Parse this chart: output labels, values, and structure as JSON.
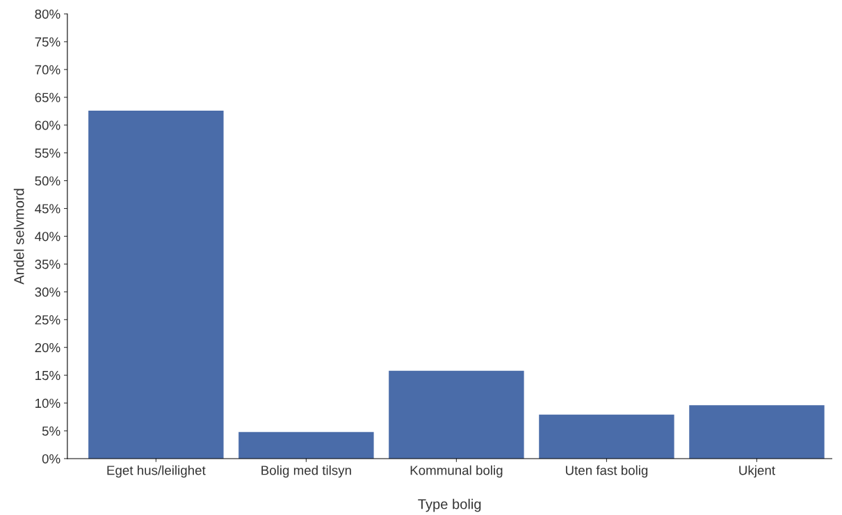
{
  "chart_data": {
    "type": "bar",
    "xlabel": "Type bolig",
    "ylabel": "Andel selvmord",
    "categories": [
      "Eget hus/leilighet",
      "Bolig med tilsyn",
      "Kommunal bolig",
      "Uten fast bolig",
      "Ukjent"
    ],
    "values": [
      62.6,
      4.8,
      15.8,
      7.9,
      9.6
    ],
    "color": "#4a6ca9",
    "ylim": [
      0,
      80
    ],
    "yticks": [
      {
        "value": 0,
        "label": "0%"
      },
      {
        "value": 5,
        "label": "5%"
      },
      {
        "value": 10,
        "label": "10%"
      },
      {
        "value": 15,
        "label": "15%"
      },
      {
        "value": 20,
        "label": "20%"
      },
      {
        "value": 25,
        "label": "25%"
      },
      {
        "value": 30,
        "label": "30%"
      },
      {
        "value": 35,
        "label": "35%"
      },
      {
        "value": 40,
        "label": "40%"
      },
      {
        "value": 45,
        "label": "45%"
      },
      {
        "value": 50,
        "label": "50%"
      },
      {
        "value": 55,
        "label": "55%"
      },
      {
        "value": 60,
        "label": "60%"
      },
      {
        "value": 65,
        "label": "65%"
      },
      {
        "value": 70,
        "label": "70%"
      },
      {
        "value": 75,
        "label": "75%"
      },
      {
        "value": 80,
        "label": "80%"
      }
    ],
    "grid": false
  }
}
